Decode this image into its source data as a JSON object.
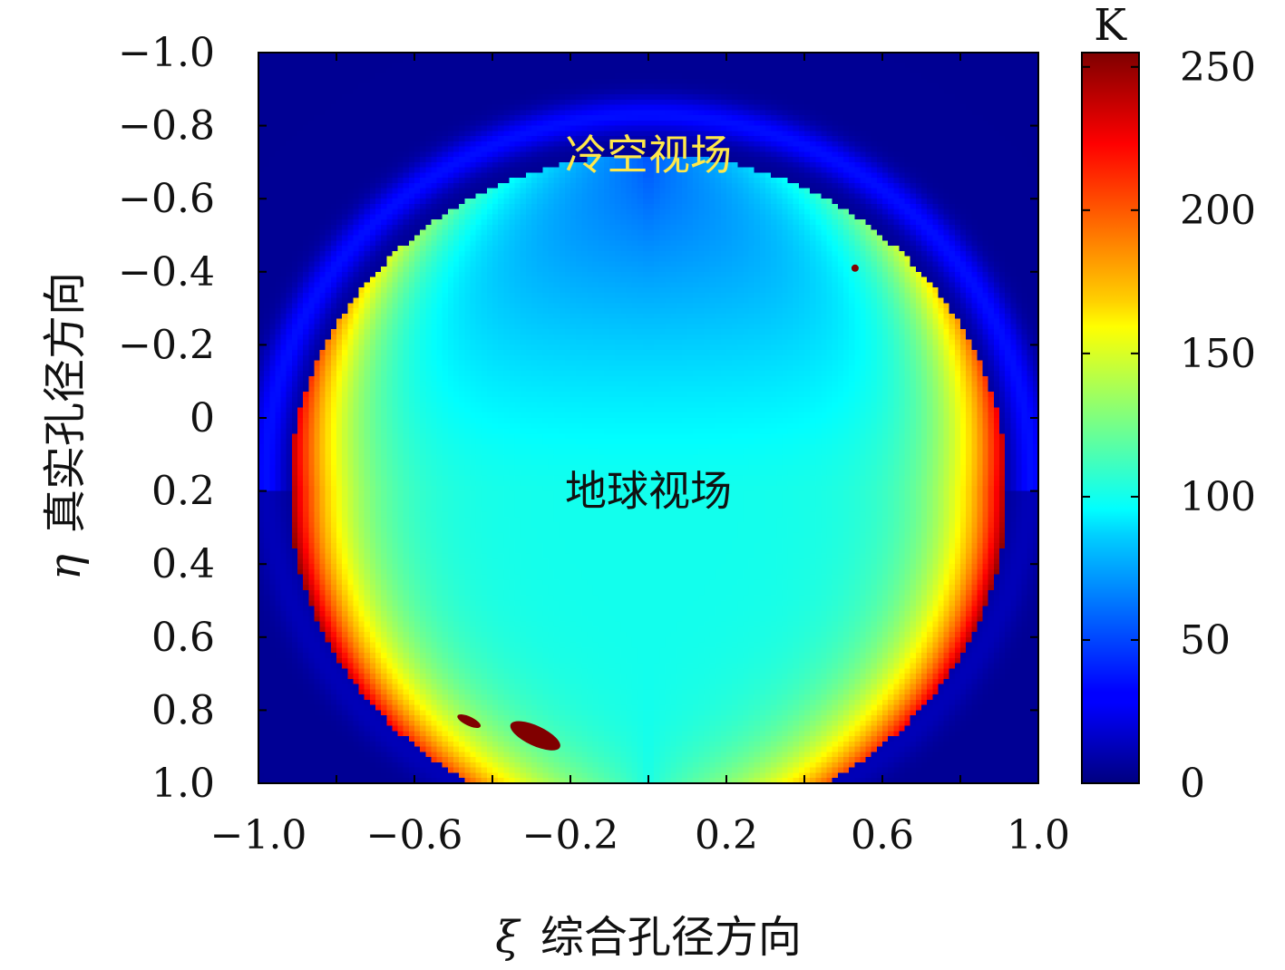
{
  "chart_data": {
    "type": "heatmap",
    "colormap": "jet",
    "xlabel_symbol": "ξ",
    "xlabel_text": "综合孔径方向",
    "ylabel_symbol": "η",
    "ylabel_text": "真实孔径方向",
    "xlim": [
      -1.0,
      1.0
    ],
    "ylim": [
      1.0,
      -1.0
    ],
    "x_ticks": [
      -1.0,
      -0.6,
      -0.2,
      0.2,
      0.6,
      1.0
    ],
    "x_tick_labels": [
      "−1.0",
      "−0.6",
      "−0.2",
      "0.2",
      "0.6",
      "1.0"
    ],
    "y_ticks": [
      -1.0,
      -0.8,
      -0.6,
      -0.4,
      -0.2,
      0,
      0.2,
      0.4,
      0.6,
      0.8,
      1.0
    ],
    "y_tick_labels": [
      "−1.0",
      "−0.8",
      "−0.6",
      "−0.4",
      "−0.2",
      "0",
      "0.2",
      "0.4",
      "0.6",
      "0.8",
      "1.0"
    ],
    "colorbar": {
      "unit": "K",
      "range": [
        0,
        255
      ],
      "ticks": [
        0,
        50,
        100,
        150,
        200,
        250
      ],
      "tick_labels": [
        "0",
        "50",
        "100",
        "150",
        "200",
        "250"
      ]
    },
    "regions": {
      "cold_sky": {
        "value": 5,
        "ring_value": 35
      },
      "earth": {
        "center": [
          0.0,
          0.2
        ],
        "radius": 0.92,
        "values": {
          "top": 50,
          "center": 100,
          "inner_limb": 150,
          "limb": 240
        }
      },
      "hot_spots": [
        {
          "xi": -0.29,
          "eta": 0.87,
          "value": 255
        },
        {
          "xi": -0.46,
          "eta": 0.83,
          "value": 255
        },
        {
          "xi": 0.53,
          "eta": -0.41,
          "value": 255
        }
      ]
    },
    "annotations": [
      {
        "text": "冷空视场",
        "xi": 0.0,
        "eta": -0.72,
        "color": "#ffe84a"
      },
      {
        "text": "地球视场",
        "xi": 0.0,
        "eta": 0.2,
        "color": "#111111"
      }
    ]
  }
}
